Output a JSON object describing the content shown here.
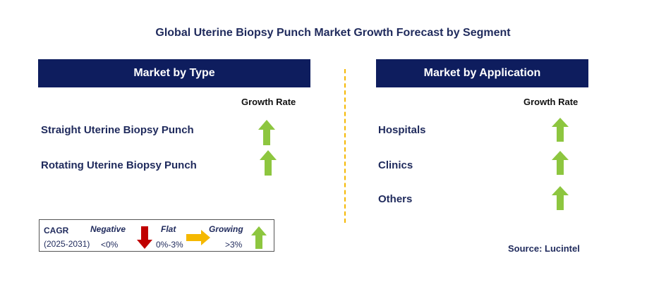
{
  "title": "Global Uterine Biopsy Punch Market Growth Forecast by Segment",
  "colors": {
    "header_bg": "#0e1d5e",
    "growth_arrow": "#8dc63f",
    "negative_arrow": "#c00000",
    "flat_arrow": "#f5b800",
    "divider": "#f5b800"
  },
  "type_panel": {
    "header": "Market by Type",
    "growth_label": "Growth Rate",
    "rows": [
      {
        "label": "Straight Uterine Biopsy Punch",
        "trend": "growing"
      },
      {
        "label": "Rotating Uterine Biopsy Punch",
        "trend": "growing"
      }
    ]
  },
  "application_panel": {
    "header": "Market by Application",
    "growth_label": "Growth Rate",
    "rows": [
      {
        "label": "Hospitals",
        "trend": "growing"
      },
      {
        "label": "Clinics",
        "trend": "growing"
      },
      {
        "label": "Others",
        "trend": "growing"
      }
    ]
  },
  "legend": {
    "cagr_label": "CAGR",
    "period": "(2025-2031)",
    "negative": {
      "label": "Negative",
      "range": "<0%",
      "icon": "down-arrow-icon"
    },
    "flat": {
      "label": "Flat",
      "range": "0%-3%",
      "icon": "right-arrow-icon"
    },
    "growing": {
      "label": "Growing",
      "range": ">3%",
      "icon": "up-arrow-icon"
    }
  },
  "source": "Source: Lucintel"
}
